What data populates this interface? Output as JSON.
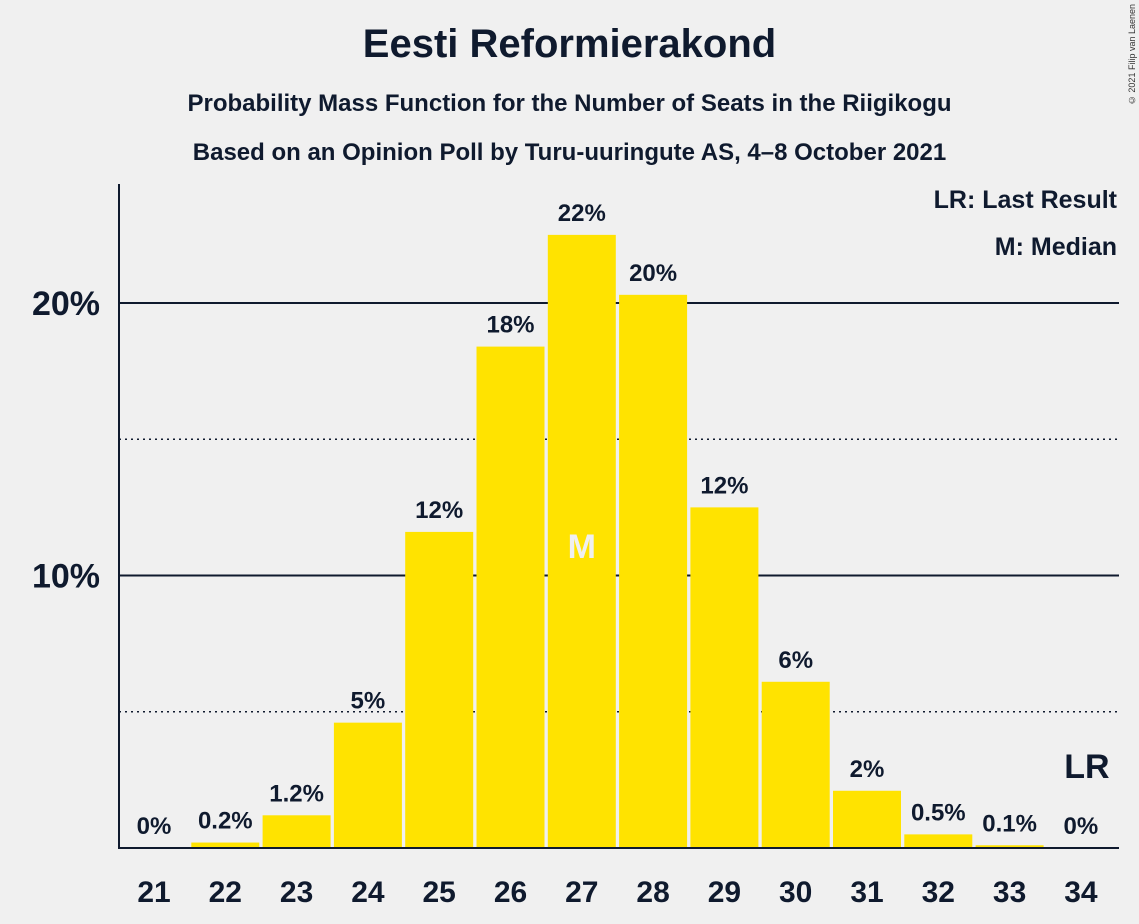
{
  "header": {
    "title": "Eesti Reformierakond",
    "subtitle1": "Probability Mass Function for the Number of Seats in the Riigikogu",
    "subtitle2": "Based on an Opinion Poll by Turu-uuringute AS, 4–8 October 2021",
    "copyright": "© 2021 Filip van Laenen"
  },
  "legend": {
    "last_result": "LR: Last Result",
    "median": "M: Median"
  },
  "colors": {
    "bar": "#ffe300",
    "text": "#0f1a2e",
    "background": "#f0f0f0"
  },
  "chart_data": {
    "type": "bar",
    "categories": [
      "21",
      "22",
      "23",
      "24",
      "25",
      "26",
      "27",
      "28",
      "29",
      "30",
      "31",
      "32",
      "33",
      "34"
    ],
    "values": [
      0,
      0.2,
      1.2,
      4.6,
      11.6,
      18.4,
      22.5,
      20.3,
      12.5,
      6.1,
      2.1,
      0.5,
      0.1,
      0
    ],
    "data_labels": [
      "0%",
      "0.2%",
      "1.2%",
      "5%",
      "12%",
      "18%",
      "22%",
      "20%",
      "12%",
      "6%",
      "2%",
      "0.5%",
      "0.1%",
      "0%"
    ],
    "y_ticks": [
      {
        "value": 10,
        "label": "10%"
      },
      {
        "value": 20,
        "label": "20%"
      }
    ],
    "dotted_gridlines": [
      5,
      15
    ],
    "ylim": [
      0,
      24.5
    ],
    "median_category": "27",
    "median_label": "M",
    "last_result_category": "34",
    "last_result_label": "LR",
    "grid": true,
    "legend_position": "top-right"
  }
}
